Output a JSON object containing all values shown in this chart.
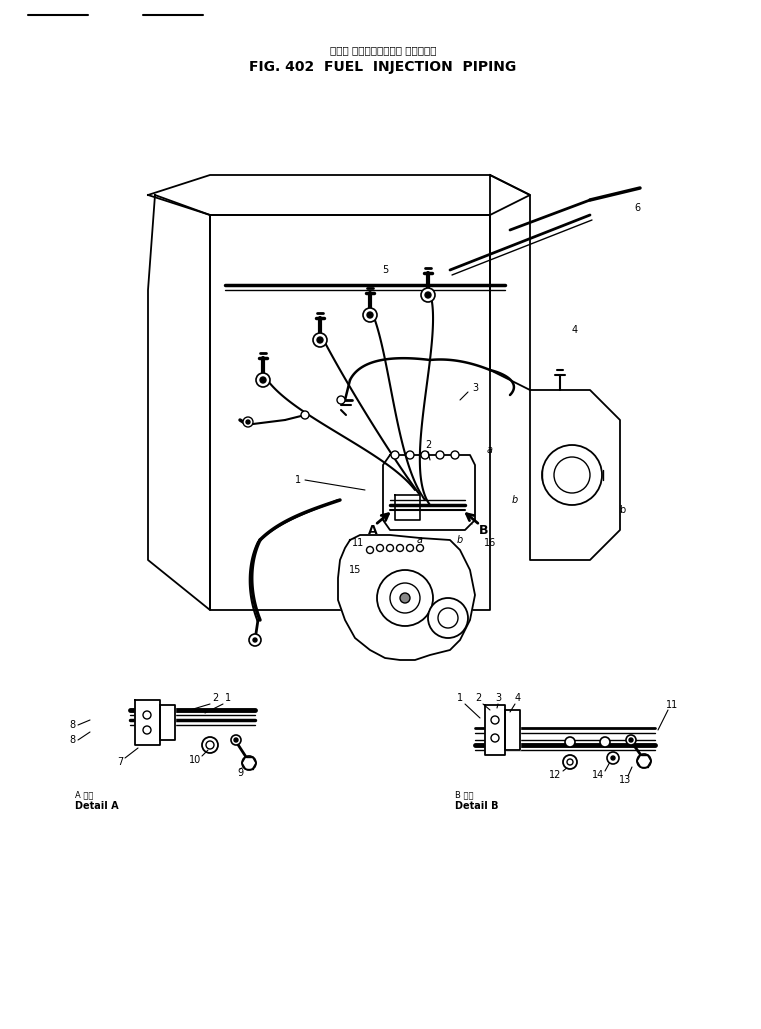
{
  "title_jp": "フェル インジェクション パイピング",
  "title_en": "FIG. 402  FUEL  INJECTION  PIPING",
  "detail_a_jp": "A 詳細",
  "detail_a_en": "Detail A",
  "detail_b_jp": "B 詳細",
  "detail_b_en": "Detail B",
  "bg_color": "#ffffff",
  "line_color": "#000000",
  "fig_width": 7.61,
  "fig_height": 10.29,
  "dpi": 100
}
